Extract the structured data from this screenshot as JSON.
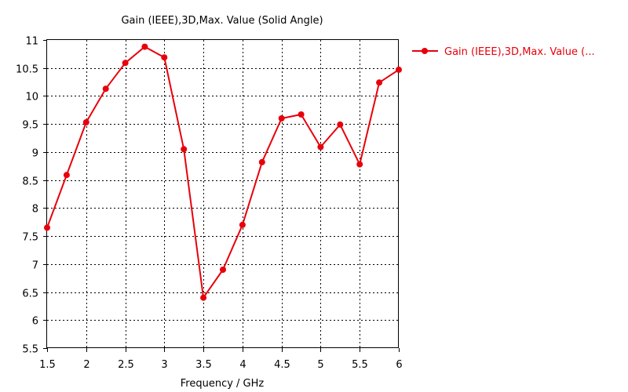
{
  "chart_data": {
    "type": "line",
    "title": "Gain (IEEE),3D,Max. Value (Solid Angle)",
    "xlabel": "Frequency / GHz",
    "ylabel": "",
    "xlim": [
      1.5,
      6
    ],
    "ylim": [
      5.5,
      11
    ],
    "x_ticks": [
      "1.5",
      "2",
      "2.5",
      "3",
      "3.5",
      "4",
      "4.5",
      "5",
      "5.5",
      "6"
    ],
    "y_ticks": [
      "5.5",
      "6",
      "6.5",
      "7",
      "7.5",
      "8",
      "8.5",
      "9",
      "9.5",
      "10",
      "10.5",
      "11"
    ],
    "grid": true,
    "legend_position": "top-right, outside plot",
    "series": [
      {
        "name": "Gain (IEEE),3D,Max. Value (...",
        "color": "#e8000b",
        "marker": "circle",
        "x": [
          1.5,
          1.75,
          2.0,
          2.25,
          2.5,
          2.75,
          3.0,
          3.25,
          3.5,
          3.75,
          4.0,
          4.25,
          4.5,
          4.75,
          5.0,
          5.25,
          5.5,
          5.75,
          6.0
        ],
        "y": [
          7.65,
          8.59,
          9.53,
          10.13,
          10.59,
          10.88,
          10.69,
          9.05,
          6.4,
          6.9,
          7.7,
          8.82,
          9.6,
          9.67,
          9.09,
          9.49,
          8.78,
          10.24,
          10.47
        ]
      }
    ]
  }
}
